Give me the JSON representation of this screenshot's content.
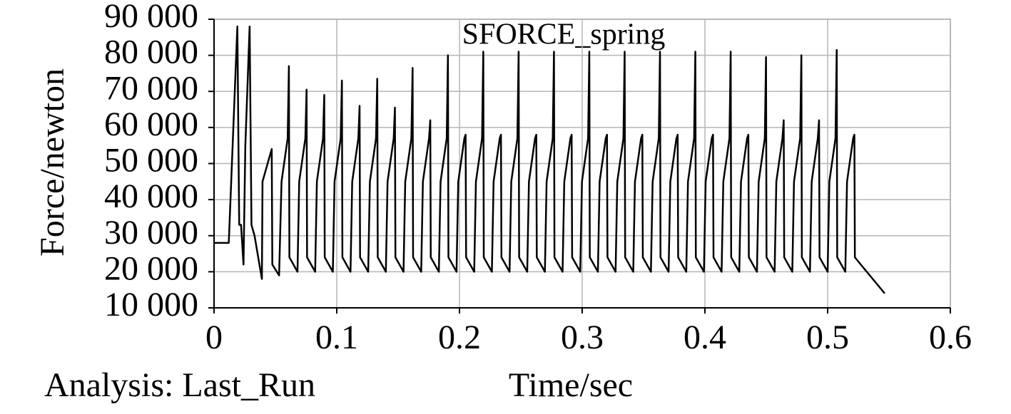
{
  "chart_data": {
    "type": "line",
    "title": "SFORCE_spring",
    "xlabel": "Time/sec",
    "ylabel": "Force/newton",
    "annotation": "Analysis: Last_Run",
    "xlim": [
      0,
      0.6
    ],
    "xticks": [
      0,
      0.1,
      0.2,
      0.3,
      0.4,
      0.5,
      0.6
    ],
    "ylim": [
      10000,
      90000
    ],
    "yticks": [
      {
        "value": 10000,
        "label": "10 000"
      },
      {
        "value": 20000,
        "label": "20 000"
      },
      {
        "value": 30000,
        "label": "30 000"
      },
      {
        "value": 40000,
        "label": "40 000"
      },
      {
        "value": 50000,
        "label": "50 000"
      },
      {
        "value": 60000,
        "label": "60 000"
      },
      {
        "value": 70000,
        "label": "70 000"
      },
      {
        "value": 80000,
        "label": "80 000"
      },
      {
        "value": 90000,
        "label": "90 000"
      }
    ],
    "grid": true,
    "series": [
      {
        "color": "#000000",
        "x": [
          0,
          0.012,
          0.019,
          0.0205,
          0.022,
          0.024,
          0.0255,
          0.029,
          0.0305,
          0.033,
          0.039,
          0.0395,
          0.047,
          0.0475,
          0.053,
          0.055,
          0.06,
          0.061,
          0.0614,
          0.068,
          0.0694,
          0.0744,
          0.0754,
          0.0758,
          0.0824,
          0.0838,
          0.0888,
          0.0898,
          0.0902,
          0.0968,
          0.0982,
          0.1032,
          0.1042,
          0.1046,
          0.1112,
          0.1126,
          0.1176,
          0.1186,
          0.119,
          0.1256,
          0.127,
          0.132,
          0.133,
          0.1334,
          0.14,
          0.1414,
          0.1464,
          0.1474,
          0.1478,
          0.1544,
          0.1558,
          0.1608,
          0.1618,
          0.1622,
          0.1688,
          0.1702,
          0.1752,
          0.1762,
          0.1766,
          0.1832,
          0.1846,
          0.1896,
          0.1906,
          0.191,
          0.1976,
          0.199,
          0.204,
          0.205,
          0.2054,
          0.212,
          0.2134,
          0.2184,
          0.2194,
          0.2198,
          0.2264,
          0.2278,
          0.2328,
          0.2338,
          0.2342,
          0.2408,
          0.2422,
          0.2472,
          0.2482,
          0.2486,
          0.2552,
          0.2566,
          0.2616,
          0.2626,
          0.263,
          0.2696,
          0.271,
          0.276,
          0.277,
          0.2774,
          0.284,
          0.2854,
          0.2904,
          0.2914,
          0.2918,
          0.2984,
          0.2998,
          0.3048,
          0.3058,
          0.3062,
          0.3128,
          0.3142,
          0.3192,
          0.3202,
          0.3206,
          0.3272,
          0.3286,
          0.3336,
          0.3346,
          0.335,
          0.3416,
          0.343,
          0.348,
          0.349,
          0.3494,
          0.356,
          0.3574,
          0.3624,
          0.3634,
          0.3638,
          0.3704,
          0.3718,
          0.3768,
          0.3778,
          0.3782,
          0.3848,
          0.3862,
          0.3912,
          0.3922,
          0.3926,
          0.3992,
          0.4006,
          0.4056,
          0.4066,
          0.407,
          0.4136,
          0.415,
          0.42,
          0.421,
          0.4214,
          0.428,
          0.4294,
          0.4344,
          0.4354,
          0.4358,
          0.4424,
          0.4438,
          0.4488,
          0.4498,
          0.4502,
          0.4568,
          0.4582,
          0.4632,
          0.4642,
          0.4646,
          0.4712,
          0.4726,
          0.4776,
          0.4786,
          0.479,
          0.4856,
          0.487,
          0.492,
          0.493,
          0.4934,
          0.5,
          0.5014,
          0.5064,
          0.5074,
          0.5078,
          0.5144,
          0.5158,
          0.5208,
          0.5218,
          0.5222,
          0.527,
          0.5465
        ],
        "values": [
          28000,
          28000,
          88000,
          33000,
          33000,
          22000,
          55000,
          88000,
          33000,
          30000,
          18000,
          45000,
          54000,
          22000,
          19000,
          45000,
          57000,
          77000,
          24000,
          20000,
          45000,
          57000,
          70500,
          24000,
          20000,
          45000,
          57000,
          69000,
          24000,
          20000,
          45000,
          57000,
          73000,
          24000,
          20000,
          45000,
          57000,
          66000,
          24000,
          20000,
          45000,
          57000,
          73500,
          24000,
          20000,
          45000,
          57000,
          65500,
          24000,
          20000,
          45000,
          57000,
          76500,
          24000,
          20000,
          45000,
          57000,
          62000,
          24000,
          20000,
          45000,
          57000,
          80000,
          24000,
          20000,
          45000,
          57000,
          58000,
          24000,
          20000,
          45000,
          57000,
          81000,
          24000,
          20000,
          45000,
          57000,
          58000,
          24000,
          20000,
          45000,
          57000,
          81000,
          24000,
          20000,
          45000,
          57000,
          58000,
          24000,
          20000,
          45000,
          57000,
          81000,
          24000,
          20000,
          45000,
          57000,
          58000,
          24000,
          20000,
          45000,
          57000,
          81000,
          24000,
          20000,
          45000,
          57000,
          58000,
          24000,
          20000,
          45000,
          57000,
          81000,
          24000,
          20000,
          45000,
          57000,
          58000,
          24000,
          20000,
          45000,
          57000,
          81000,
          24000,
          20000,
          45000,
          57000,
          58000,
          24000,
          20000,
          45000,
          57000,
          81000,
          24000,
          20000,
          45000,
          57000,
          58000,
          24000,
          20000,
          45000,
          57000,
          81000,
          24000,
          20000,
          45000,
          57000,
          58000,
          24000,
          20000,
          45000,
          57000,
          79500,
          24000,
          20000,
          45000,
          57000,
          62000,
          24000,
          20000,
          45000,
          57000,
          80000,
          24000,
          20000,
          45000,
          57000,
          62000,
          24000,
          20000,
          45000,
          57000,
          81500,
          24000,
          20000,
          45000,
          57000,
          58000,
          24000,
          22000,
          14000
        ]
      }
    ]
  }
}
